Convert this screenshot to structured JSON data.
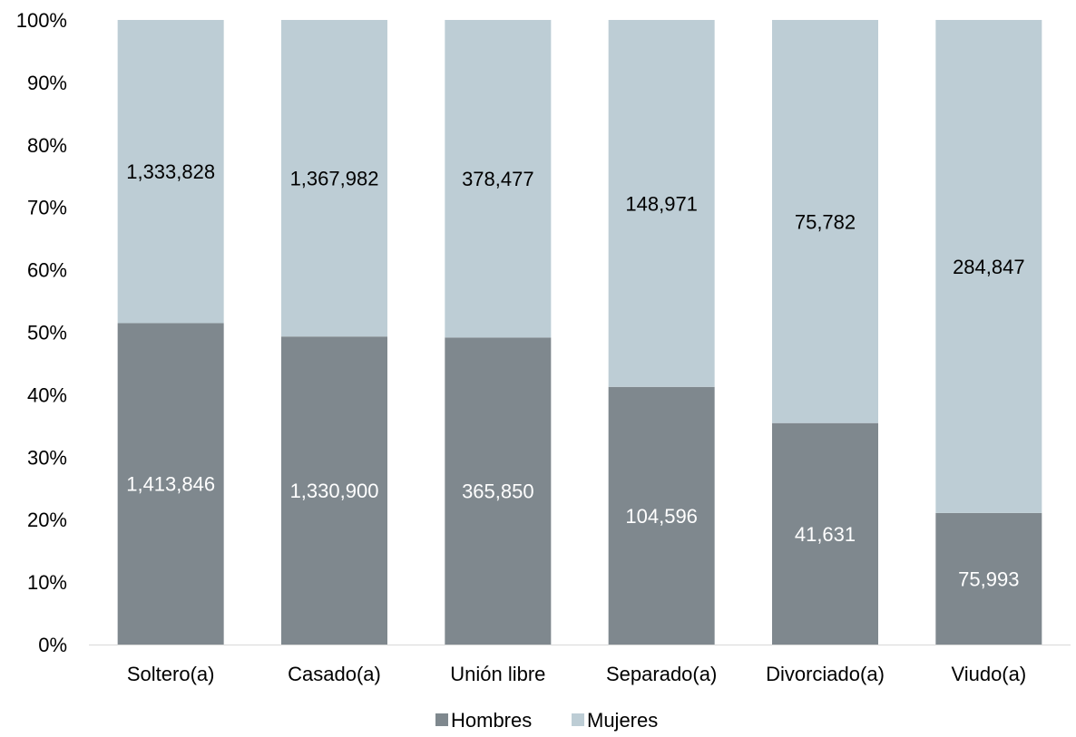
{
  "chart_data": {
    "type": "bar",
    "stacked": "percent",
    "categories": [
      "Soltero(a)",
      "Casado(a)",
      "Unión libre",
      "Separado(a)",
      "Divorciado(a)",
      "Viudo(a)"
    ],
    "series": [
      {
        "name": "Hombres",
        "values": [
          1413846,
          1330900,
          365850,
          104596,
          41631,
          75993
        ],
        "labels": [
          "1,413,846",
          "1,330,900",
          "365,850",
          "104,596",
          "41,631",
          "75,993"
        ],
        "color": "#7f888e",
        "label_color": "#ffffff"
      },
      {
        "name": "Mujeres",
        "values": [
          1333828,
          1367982,
          378477,
          148971,
          75782,
          284847
        ],
        "labels": [
          "1,333,828",
          "1,367,982",
          "378,477",
          "148,971",
          "75,782",
          "284,847"
        ],
        "color": "#bdcdd5",
        "label_color": "#000000"
      }
    ],
    "y_ticks": [
      "0%",
      "10%",
      "20%",
      "30%",
      "40%",
      "50%",
      "60%",
      "70%",
      "80%",
      "90%",
      "100%"
    ],
    "ylim": [
      0,
      100
    ],
    "grid": false,
    "legend": "bottom-center",
    "title": "",
    "xlabel": "",
    "ylabel": ""
  }
}
